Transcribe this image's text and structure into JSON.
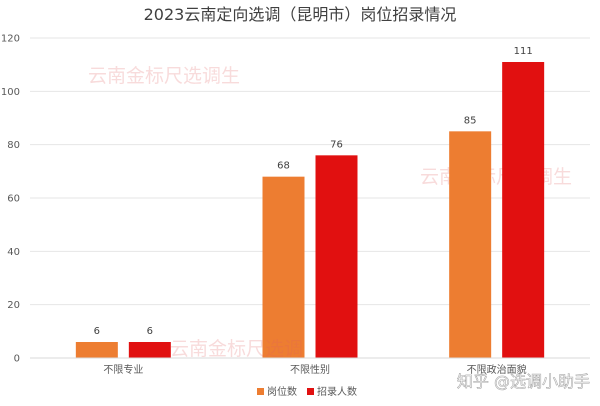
{
  "chart_data": {
    "type": "bar",
    "title": "2023云南定向选调（昆明市）岗位招录情况",
    "categories": [
      "不限专业",
      "不限性别",
      "不限政治面貌"
    ],
    "series": [
      {
        "name": "岗位数",
        "values": [
          6,
          68,
          85
        ],
        "color": "#ed7d31"
      },
      {
        "name": "招录人数",
        "values": [
          6,
          76,
          111
        ],
        "color": "#e11010"
      }
    ],
    "yticks": [
      0,
      20,
      40,
      60,
      80,
      100,
      120
    ],
    "ylim": [
      0,
      120
    ],
    "grid": true,
    "legend": "bottom"
  },
  "watermarks": [
    "云南金标尺选调生",
    "云南金标尺选调生",
    "云南金标尺选调"
  ],
  "credit": "知乎 @选调小助手"
}
